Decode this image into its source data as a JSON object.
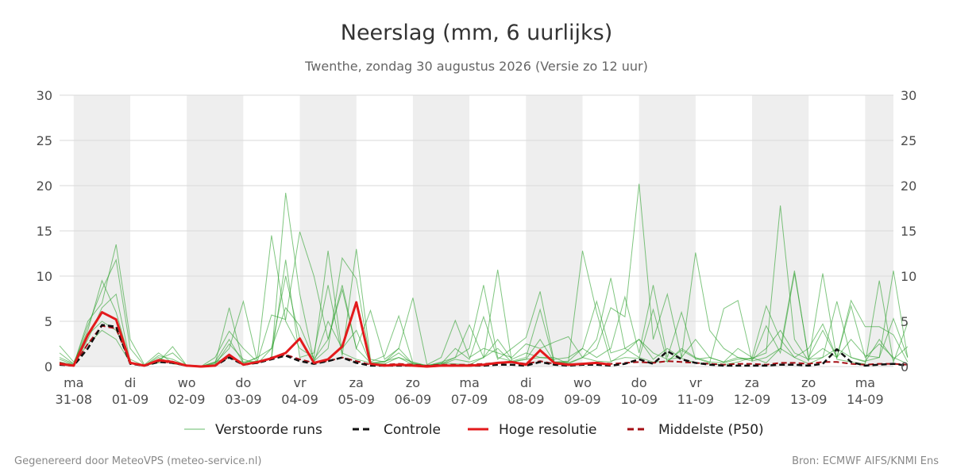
{
  "chart_data": {
    "type": "line",
    "title": "Neerslag (mm, 6 uurlijks)",
    "subtitle": "Twenthe, zondag 30 augustus 2026 (Versie zo 12 uur)",
    "ylim": [
      0,
      30
    ],
    "y_ticks": [
      0,
      5,
      10,
      15,
      20,
      25,
      30
    ],
    "x_range_days": [
      -0.25,
      14.5
    ],
    "x_ticks": [
      {
        "day": "ma",
        "date": "31-08"
      },
      {
        "day": "di",
        "date": "01-09"
      },
      {
        "day": "wo",
        "date": "02-09"
      },
      {
        "day": "do",
        "date": "03-09"
      },
      {
        "day": "vr",
        "date": "04-09"
      },
      {
        "day": "za",
        "date": "05-09"
      },
      {
        "day": "zo",
        "date": "06-09"
      },
      {
        "day": "ma",
        "date": "07-09"
      },
      {
        "day": "di",
        "date": "08-09"
      },
      {
        "day": "wo",
        "date": "09-09"
      },
      {
        "day": "do",
        "date": "10-09"
      },
      {
        "day": "vr",
        "date": "11-09"
      },
      {
        "day": "za",
        "date": "12-09"
      },
      {
        "day": "zo",
        "date": "13-09"
      },
      {
        "day": "ma",
        "date": "14-09"
      }
    ],
    "shaded_days": [
      0,
      2,
      4,
      6,
      8,
      10,
      12,
      14
    ],
    "grid": true,
    "legend_placement": "bottom",
    "step_hours": 6,
    "series": [
      {
        "name": "Hoge resolutie",
        "color": "#e31a1c",
        "style": "solid",
        "values": [
          0.3,
          0.1,
          3.5,
          6.0,
          5.2,
          0.4,
          0.1,
          0.7,
          0.5,
          0.1,
          0.0,
          0.1,
          1.3,
          0.2,
          0.5,
          0.9,
          1.5,
          3.1,
          0.4,
          0.8,
          2.2,
          7.1,
          0.3,
          0.1,
          0.2,
          0.1,
          0.0,
          0.1,
          0.1,
          0.1,
          0.2,
          0.4,
          0.5,
          0.2,
          1.8,
          0.4,
          0.2,
          0.3,
          0.4,
          0.2
        ]
      },
      {
        "name": "Controle",
        "color": "#111111",
        "style": "dashed",
        "values": [
          0.2,
          0.1,
          2.0,
          4.6,
          4.4,
          0.3,
          0.1,
          0.5,
          0.4,
          0.1,
          0.0,
          0.1,
          1.0,
          0.2,
          0.4,
          0.8,
          1.2,
          0.6,
          0.3,
          0.6,
          1.0,
          0.4,
          0.1,
          0.1,
          0.1,
          0.1,
          0.0,
          0.1,
          0.1,
          0.1,
          0.1,
          0.2,
          0.2,
          0.1,
          0.5,
          0.2,
          0.1,
          0.2,
          0.2,
          0.1,
          0.3,
          0.8,
          0.3,
          1.7,
          0.8,
          0.4,
          0.2,
          0.1,
          0.1,
          0.1,
          0.1,
          0.2,
          0.2,
          0.1,
          0.3,
          1.9,
          0.5,
          0.1,
          0.2,
          0.3,
          0.1
        ]
      },
      {
        "name": "Middelste (P50)",
        "color": "#a50f15",
        "style": "dashed",
        "values": [
          0.4,
          0.1,
          2.5,
          4.5,
          4.2,
          0.4,
          0.1,
          0.6,
          0.4,
          0.1,
          0.0,
          0.1,
          1.1,
          0.2,
          0.4,
          1.0,
          1.3,
          0.8,
          0.4,
          0.6,
          1.0,
          0.6,
          0.2,
          0.2,
          0.3,
          0.2,
          0.1,
          0.2,
          0.2,
          0.2,
          0.3,
          0.4,
          0.5,
          0.3,
          0.6,
          0.3,
          0.2,
          0.3,
          0.4,
          0.3,
          0.4,
          0.5,
          0.4,
          0.6,
          0.5,
          0.4,
          0.3,
          0.2,
          0.3,
          0.3,
          0.2,
          0.4,
          0.4,
          0.3,
          0.5,
          0.5,
          0.3,
          0.2,
          0.3,
          0.3,
          0.2
        ]
      },
      {
        "name": "Verstoorde runs",
        "color": "#2ca02c",
        "style": "thin",
        "ensemble": true,
        "members": [
          [
            1.5,
            0.3,
            4.0,
            9.5,
            6.0,
            0.5,
            0.1,
            1.0,
            0.3,
            0.1,
            0.0,
            0.5,
            3.0,
            0.4,
            1.0,
            2.0,
            10.0,
            3.0,
            0.5,
            5.0,
            2.0,
            4.0,
            0.3,
            0.5,
            2.0,
            0.3,
            0.1,
            0.4,
            0.3,
            0.2,
            1.0,
            2.0,
            0.5,
            0.8,
            3.0,
            0.5,
            0.4,
            1.0,
            0.6,
            0.5,
            1.5,
            3.0,
            0.8,
            2.0,
            0.9,
            0.4,
            0.3,
            0.2,
            0.5,
            1.0,
            0.4,
            2.0,
            1.0,
            0.3,
            1.0,
            2.0,
            1.0,
            0.5,
            3.0,
            0.8,
            2.2
          ],
          [
            0.8,
            0.2,
            5.0,
            7.0,
            13.5,
            3.0,
            0.2,
            1.5,
            0.4,
            0.1,
            0.0,
            0.3,
            6.5,
            0.3,
            1.0,
            14.5,
            5.0,
            2.0,
            1.0,
            12.8,
            1.5,
            0.8,
            0.4,
            0.3,
            1.0,
            0.2,
            0.1,
            0.5,
            1.0,
            2.0,
            9.0,
            1.0,
            0.6,
            1.0,
            6.3,
            0.4,
            0.5,
            12.8,
            6.0,
            0.6,
            1.0,
            0.9,
            6.3,
            0.5,
            2.0,
            1.0,
            0.5,
            0.4,
            0.8,
            0.9,
            1.5,
            17.8,
            3.0,
            0.6,
            10.3,
            0.8,
            0.5,
            0.3,
            9.5,
            0.5,
            4.8
          ],
          [
            2.3,
            0.5,
            3.5,
            5.0,
            4.0,
            0.8,
            0.1,
            0.5,
            2.2,
            0.1,
            0.0,
            0.4,
            2.0,
            7.2,
            0.5,
            1.0,
            19.2,
            8.0,
            0.6,
            2.0,
            12.0,
            9.7,
            0.5,
            1.2,
            5.6,
            0.4,
            0.1,
            0.3,
            1.0,
            4.6,
            1.0,
            10.7,
            0.5,
            0.8,
            1.0,
            1.0,
            0.3,
            1.0,
            3.0,
            9.8,
            2.0,
            1.0,
            0.5,
            0.6,
            1.8,
            0.9,
            0.4,
            6.4,
            7.3,
            0.6,
            1.0,
            2.0,
            10.6,
            0.8,
            1.0,
            7.2,
            1.0,
            0.6,
            1.0,
            10.6,
            1.0
          ],
          [
            0.5,
            0.2,
            2.5,
            4.0,
            3.0,
            0.4,
            0.1,
            1.2,
            0.8,
            0.1,
            0.0,
            0.5,
            1.0,
            0.5,
            0.6,
            5.7,
            5.2,
            14.9,
            10.0,
            3.0,
            9.0,
            2.0,
            6.2,
            0.8,
            2.0,
            7.6,
            0.2,
            1.0,
            5.1,
            1.0,
            2.0,
            1.5,
            1.0,
            2.5,
            2.0,
            2.7,
            3.3,
            1.0,
            2.0,
            6.5,
            5.5,
            20.2,
            3.0,
            8.0,
            1.0,
            12.6,
            4.0,
            2.0,
            1.0,
            0.6,
            4.5,
            1.5,
            10.3,
            1.0,
            4.0,
            1.0,
            7.3,
            4.4,
            4.4,
            3.5,
            0.5
          ],
          [
            1.0,
            0.3,
            4.5,
            8.5,
            11.8,
            2.0,
            0.1,
            0.8,
            1.5,
            0.1,
            0.0,
            1.0,
            3.9,
            2.0,
            0.5,
            1.0,
            11.8,
            1.0,
            1.5,
            9.0,
            1.2,
            13.0,
            0.8,
            0.5,
            1.5,
            0.3,
            0.1,
            0.3,
            2.0,
            0.8,
            5.5,
            0.8,
            2.0,
            3.2,
            8.3,
            0.5,
            0.6,
            2.0,
            1.0,
            2.0,
            7.7,
            1.5,
            9.0,
            1.0,
            6.0,
            0.8,
            1.0,
            0.5,
            2.0,
            1.0,
            6.7,
            3.0,
            1.0,
            2.0,
            4.7,
            1.0,
            6.7,
            1.0,
            2.5,
            1.0,
            0.3
          ],
          [
            0.3,
            0.1,
            3.0,
            6.5,
            8.0,
            0.5,
            0.1,
            0.4,
            0.6,
            0.1,
            0.0,
            0.2,
            2.5,
            0.8,
            0.3,
            2.0,
            6.5,
            4.5,
            0.8,
            3.0,
            8.5,
            2.0,
            0.4,
            0.6,
            1.0,
            0.5,
            0.1,
            0.2,
            0.8,
            0.5,
            1.0,
            3.0,
            0.8,
            1.5,
            1.0,
            0.8,
            1.0,
            2.0,
            7.2,
            1.5,
            2.0,
            3.0,
            1.5,
            0.8,
            1.0,
            3.0,
            1.0,
            0.5,
            1.0,
            0.8,
            2.0,
            4.0,
            1.5,
            0.8,
            2.0,
            1.0,
            3.0,
            1.2,
            1.0,
            5.3,
            1.0
          ]
        ]
      }
    ],
    "legend": [
      {
        "label": "Verstoorde runs",
        "color": "#66bb6a",
        "style": "thin"
      },
      {
        "label": "Controle",
        "color": "#111111",
        "style": "dashed"
      },
      {
        "label": "Hoge resolutie",
        "color": "#e31a1c",
        "style": "solid"
      },
      {
        "label": "Middelste (P50)",
        "color": "#a50f15",
        "style": "dashed"
      }
    ]
  },
  "footer": {
    "left": "Gegenereerd door MeteoVPS (meteo-service.nl)",
    "right": "Bron: ECMWF AIFS/KNMI Ens"
  }
}
